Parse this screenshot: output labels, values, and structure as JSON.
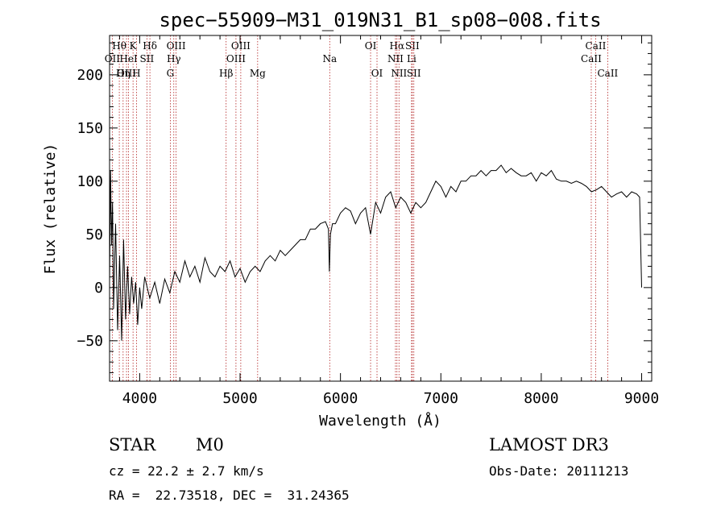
{
  "chart_data": {
    "type": "line",
    "title": "spec−55909−M31_019N31_B1_sp08−008.fits",
    "xlabel": "Wavelength (Å)",
    "ylabel": "Flux (relative)",
    "xlim": [
      3700,
      9100
    ],
    "ylim": [
      -88,
      237
    ],
    "xticks": [
      4000,
      5000,
      6000,
      7000,
      8000,
      9000
    ],
    "xtick_labels": [
      "4000",
      "5000",
      "6000",
      "7000",
      "8000",
      "9000"
    ],
    "yticks": [
      -50,
      0,
      50,
      100,
      150,
      200
    ],
    "ytick_labels": [
      "−50",
      "0",
      "50",
      "100",
      "150",
      "200"
    ],
    "series": [
      {
        "name": "flux",
        "x": [
          3700,
          3710,
          3720,
          3730,
          3740,
          3760,
          3780,
          3800,
          3820,
          3840,
          3860,
          3880,
          3900,
          3920,
          3940,
          3960,
          3980,
          4000,
          4020,
          4050,
          4100,
          4150,
          4200,
          4250,
          4300,
          4350,
          4400,
          4450,
          4500,
          4550,
          4600,
          4650,
          4700,
          4750,
          4800,
          4850,
          4900,
          4950,
          5000,
          5050,
          5100,
          5150,
          5200,
          5250,
          5300,
          5350,
          5400,
          5450,
          5500,
          5550,
          5600,
          5650,
          5700,
          5750,
          5800,
          5850,
          5880,
          5890,
          5900,
          5920,
          5950,
          6000,
          6050,
          6100,
          6150,
          6200,
          6250,
          6300,
          6350,
          6400,
          6450,
          6500,
          6550,
          6600,
          6650,
          6700,
          6750,
          6800,
          6850,
          6900,
          6950,
          7000,
          7050,
          7100,
          7150,
          7200,
          7250,
          7300,
          7350,
          7400,
          7450,
          7500,
          7550,
          7600,
          7650,
          7700,
          7750,
          7800,
          7850,
          7900,
          7950,
          8000,
          8050,
          8100,
          8150,
          8200,
          8250,
          8300,
          8350,
          8400,
          8450,
          8500,
          8550,
          8600,
          8650,
          8700,
          8750,
          8800,
          8850,
          8900,
          8950,
          8980,
          9000
        ],
        "y": [
          5,
          110,
          40,
          80,
          -20,
          60,
          -40,
          30,
          -50,
          45,
          -30,
          20,
          -25,
          10,
          -15,
          5,
          -35,
          0,
          -20,
          10,
          -10,
          5,
          -15,
          8,
          -5,
          15,
          5,
          25,
          10,
          20,
          5,
          28,
          15,
          10,
          20,
          15,
          25,
          10,
          18,
          5,
          15,
          20,
          15,
          25,
          30,
          25,
          35,
          30,
          35,
          40,
          45,
          45,
          55,
          55,
          60,
          62,
          55,
          15,
          50,
          60,
          60,
          70,
          75,
          72,
          60,
          70,
          75,
          50,
          80,
          70,
          85,
          90,
          75,
          85,
          80,
          70,
          80,
          75,
          80,
          90,
          100,
          95,
          85,
          95,
          90,
          100,
          100,
          105,
          105,
          110,
          105,
          110,
          110,
          115,
          108,
          112,
          108,
          105,
          105,
          108,
          100,
          108,
          105,
          110,
          102,
          100,
          100,
          98,
          100,
          98,
          95,
          90,
          92,
          95,
          90,
          85,
          88,
          90,
          85,
          90,
          88,
          85,
          0
        ]
      }
    ],
    "line_markers": [
      {
        "name": "Hθ",
        "wavelength": 3797,
        "row": 1
      },
      {
        "name": "OII",
        "wavelength": 3727,
        "row": 2
      },
      {
        "name": "OIII",
        "wavelength": 3869,
        "row": 3
      },
      {
        "name": "K",
        "wavelength": 3934,
        "row": 1
      },
      {
        "name": "HeI",
        "wavelength": 3889,
        "row": 2
      },
      {
        "name": "Hη",
        "wavelength": 3835,
        "row": 3
      },
      {
        "name": "H",
        "wavelength": 3968,
        "row": 3
      },
      {
        "name": "Hδ",
        "wavelength": 4102,
        "row": 1
      },
      {
        "name": "SII",
        "wavelength": 4072,
        "row": 2
      },
      {
        "name": "OIII",
        "wavelength": 4363,
        "row": 1
      },
      {
        "name": "Hγ",
        "wavelength": 4340,
        "row": 2
      },
      {
        "name": "G",
        "wavelength": 4305,
        "row": 3
      },
      {
        "name": "Hβ",
        "wavelength": 4861,
        "row": 3
      },
      {
        "name": "OIII",
        "wavelength": 5007,
        "row": 1
      },
      {
        "name": "OIII",
        "wavelength": 4959,
        "row": 2
      },
      {
        "name": "Mg",
        "wavelength": 5175,
        "row": 3
      },
      {
        "name": "Na",
        "wavelength": 5893,
        "row": 2
      },
      {
        "name": "OI",
        "wavelength": 6300,
        "row": 1
      },
      {
        "name": "OI",
        "wavelength": 6364,
        "row": 3
      },
      {
        "name": "Hα",
        "wavelength": 6563,
        "row": 1
      },
      {
        "name": "NII",
        "wavelength": 6548,
        "row": 2
      },
      {
        "name": "NII",
        "wavelength": 6583,
        "row": 3
      },
      {
        "name": "SII",
        "wavelength": 6716,
        "row": 1
      },
      {
        "name": "Li",
        "wavelength": 6708,
        "row": 2
      },
      {
        "name": "SII",
        "wavelength": 6731,
        "row": 3
      },
      {
        "name": "CaII",
        "wavelength": 8542,
        "row": 1
      },
      {
        "name": "CaII",
        "wavelength": 8498,
        "row": 2
      },
      {
        "name": "CaII",
        "wavelength": 8662,
        "row": 3
      }
    ]
  },
  "info": {
    "class": "STAR",
    "subclass": "M0",
    "survey": "LAMOST DR3",
    "cz": "cz = 22.2 ± 2.7 km/s",
    "obs_date": "Obs-Date: 20111213",
    "coords": "RA =  22.73518, DEC =  31.24365"
  },
  "colors": {
    "axis": "#000000",
    "spectrum": "#000000",
    "marker_line": "#b22222"
  }
}
